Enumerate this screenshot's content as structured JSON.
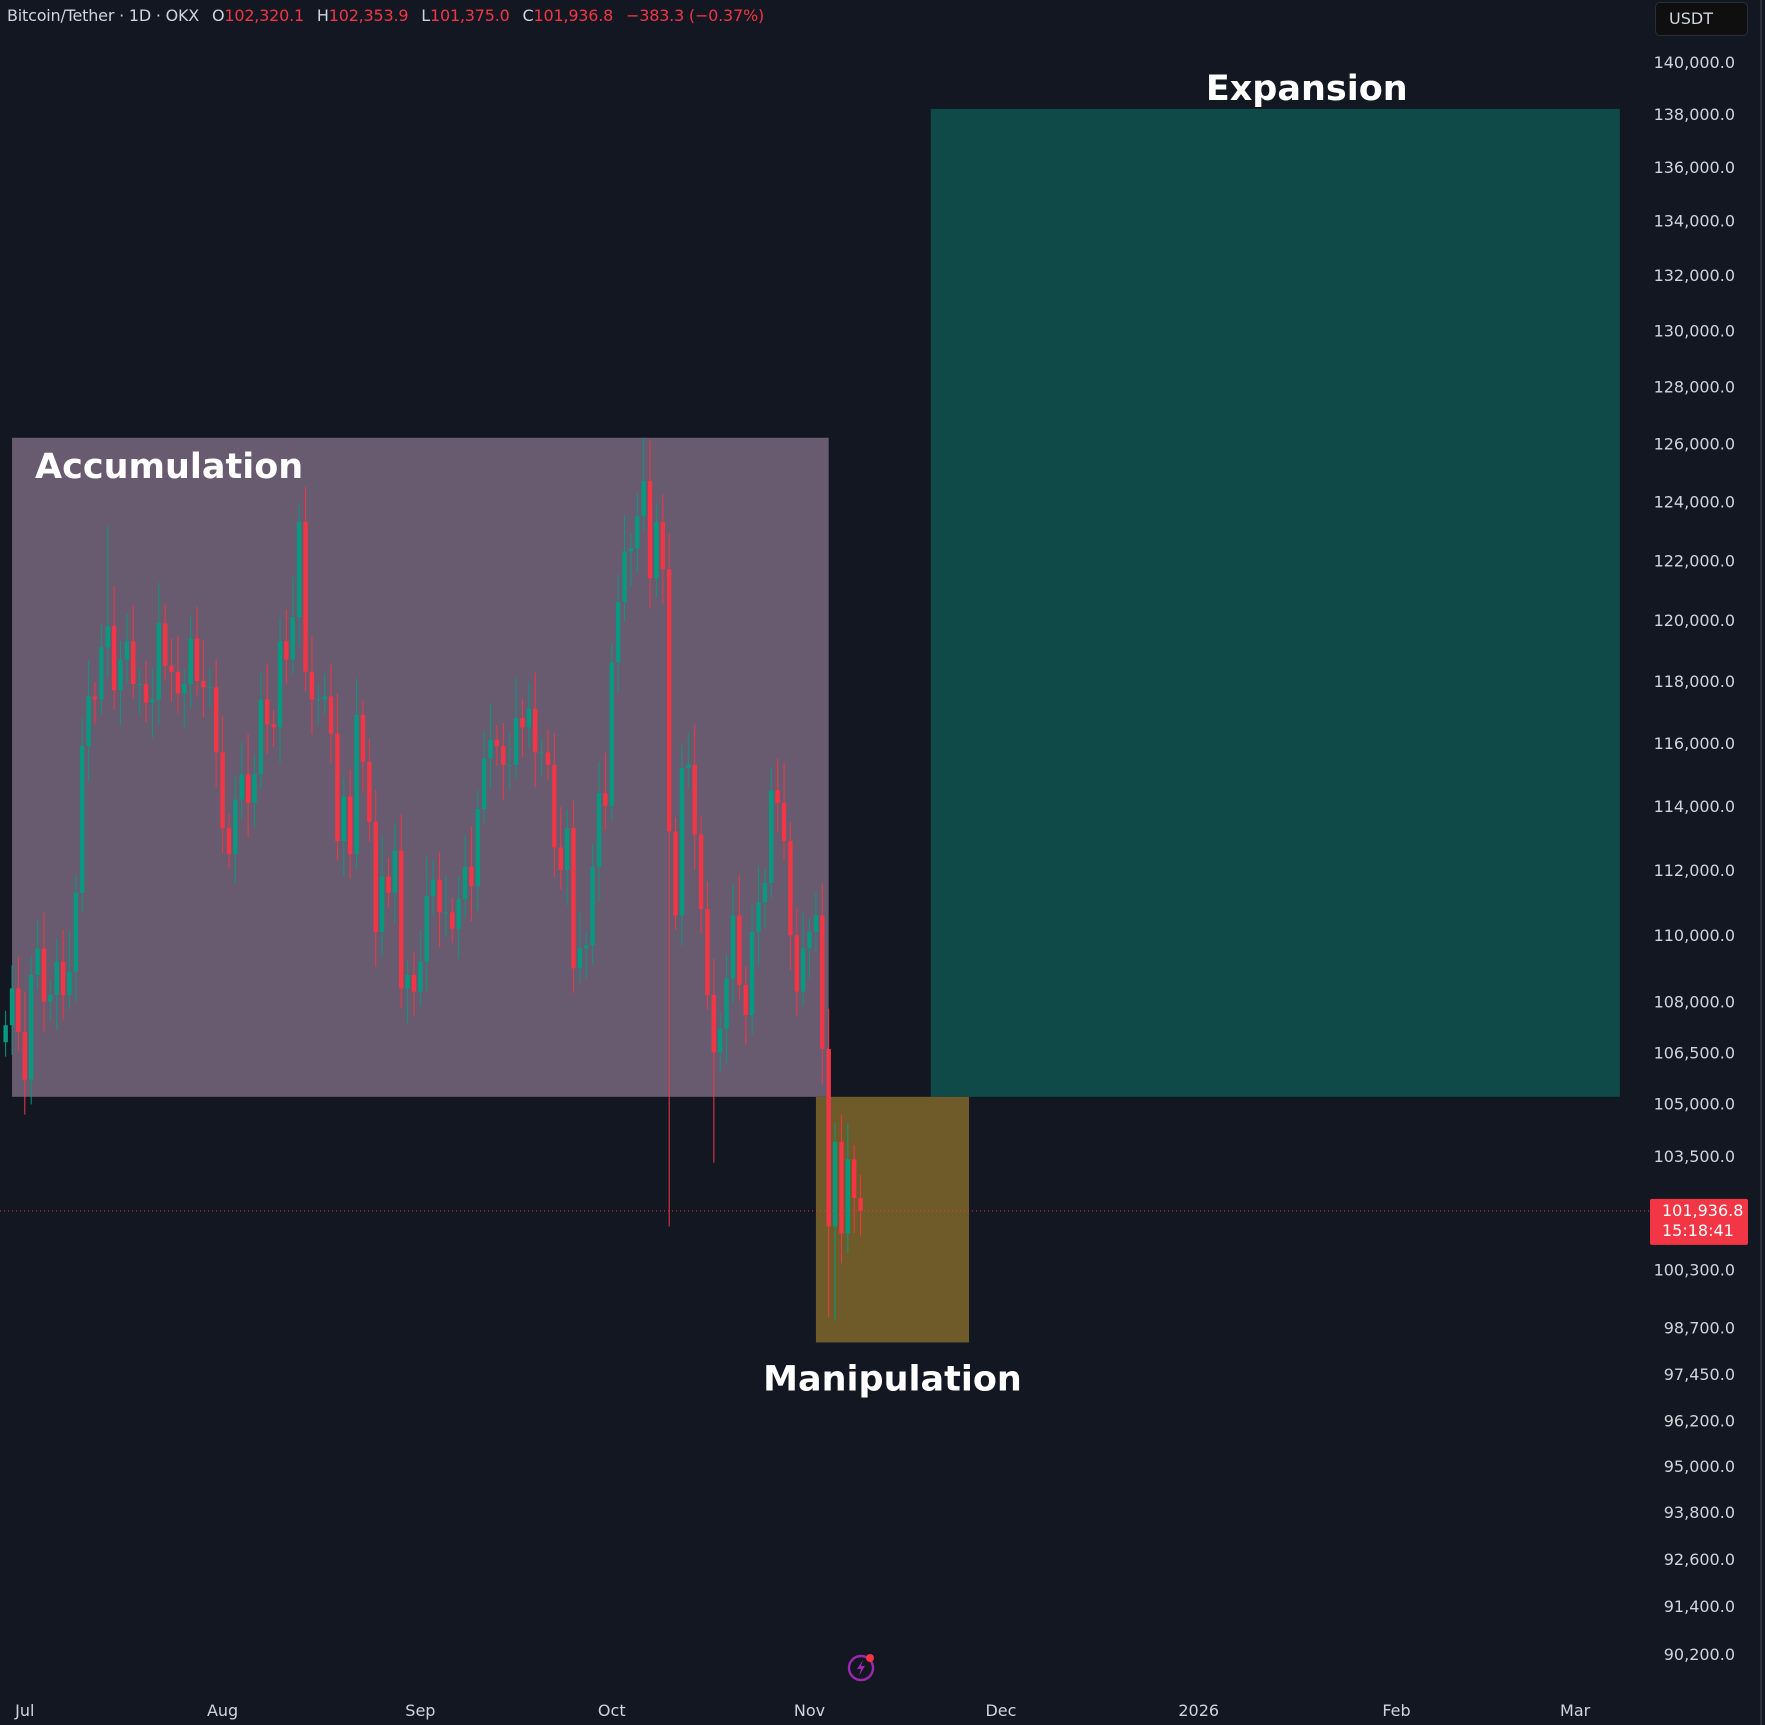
{
  "header": {
    "symbol": "Bitcoin/Tether · 1D · OKX",
    "open_label": "O",
    "open": "102,320.1",
    "high_label": "H",
    "high": "102,353.9",
    "low_label": "L",
    "low": "101,375.0",
    "close_label": "C",
    "close": "101,936.8",
    "change": "−383.3 (−0.37%)"
  },
  "currency": "USDT",
  "colors": {
    "background": "#131722",
    "up": "#089981",
    "down": "#f23645",
    "accumulation": "#685b70",
    "expansion": "#0f4a48",
    "manipulation": "#6f5a2a",
    "text": "#d1d4dc"
  },
  "icons": {
    "bottom": "lightning-alert-icon"
  },
  "chart_data": {
    "type": "candlestick",
    "scale": "log",
    "ylim": [
      90200,
      140000
    ],
    "xlim": [
      "2025-06-28",
      "2026-03-18"
    ],
    "grid": false,
    "y_ticks": [
      "140,000.0",
      "138,000.0",
      "136,000.0",
      "134,000.0",
      "132,000.0",
      "130,000.0",
      "128,000.0",
      "126,000.0",
      "124,000.0",
      "122,000.0",
      "120,000.0",
      "118,000.0",
      "116,000.0",
      "114,000.0",
      "112,000.0",
      "110,000.0",
      "108,000.0",
      "106,500.0",
      "105,000.0",
      "103,500.0",
      "100,300.0",
      "98,700.0",
      "97,450.0",
      "96,200.0",
      "95,000.0",
      "93,800.0",
      "92,600.0",
      "91,400.0",
      "90,200.0"
    ],
    "x_ticks": [
      {
        "label": "Jul",
        "date": "2025-07-01"
      },
      {
        "label": "Aug",
        "date": "2025-08-01"
      },
      {
        "label": "Sep",
        "date": "2025-09-01"
      },
      {
        "label": "Oct",
        "date": "2025-10-01"
      },
      {
        "label": "Nov",
        "date": "2025-11-01"
      },
      {
        "label": "Dec",
        "date": "2025-12-01"
      },
      {
        "label": "2026",
        "date": "2026-01-01"
      },
      {
        "label": "Feb",
        "date": "2026-02-01"
      },
      {
        "label": "Mar",
        "date": "2026-03-01"
      }
    ],
    "current_price": {
      "value": 101936.8,
      "label": "101,936.8",
      "countdown": "15:18:41"
    },
    "start_date": "2025-06-28",
    "open_first": 106800,
    "closes": [
      107300,
      108400,
      107100,
      105700,
      108800,
      109600,
      108000,
      108200,
      109200,
      108200,
      108900,
      111300,
      115900,
      117500,
      117400,
      119100,
      119800,
      117700,
      118700,
      119300,
      117900,
      117900,
      117300,
      117400,
      119900,
      118500,
      118300,
      117600,
      117900,
      119400,
      118000,
      117800,
      117800,
      115700,
      113300,
      112500,
      114200,
      115000,
      114100,
      115000,
      117400,
      116600,
      116500,
      119300,
      118700,
      120100,
      123300,
      118300,
      117400,
      117400,
      117500,
      116300,
      112900,
      114300,
      112500,
      116900,
      115400,
      113500,
      110100,
      111800,
      111300,
      112600,
      108400,
      108800,
      108300,
      109200,
      111200,
      111700,
      110700,
      110700,
      110200,
      111100,
      112100,
      111500,
      113900,
      115500,
      116100,
      115900,
      115300,
      115300,
      116800,
      116500,
      117100,
      115700,
      115700,
      115300,
      112700,
      112000,
      113300,
      109000,
      109600,
      109700,
      112100,
      114400,
      114000,
      118600,
      120600,
      122300,
      122400,
      123500,
      124700,
      121400,
      123300,
      121700,
      113200,
      110600,
      115200,
      115300,
      113100,
      110800,
      108200,
      106500,
      107200,
      108700,
      110600,
      108500,
      107600,
      110100,
      111000,
      111600,
      114500,
      114100,
      112900,
      110000,
      108300,
      109600,
      110100,
      110600,
      106600,
      101500,
      103900,
      101300,
      103400,
      102300,
      101936.8
    ],
    "notable_wicks": [
      {
        "date": "2025-07-14",
        "high": 123200
      },
      {
        "date": "2025-08-14",
        "high": 124500
      },
      {
        "date": "2025-10-06",
        "high": 126200
      },
      {
        "date": "2025-10-10",
        "low": 101500
      },
      {
        "date": "2025-10-17",
        "low": 103300
      },
      {
        "date": "2025-11-04",
        "low": 99000
      },
      {
        "date": "2025-11-05",
        "low": 98900
      }
    ],
    "zones": [
      {
        "name": "Accumulation",
        "start": "2025-06-29",
        "end": "2025-11-04",
        "low": 105200,
        "high": 126200,
        "color": "#685b70",
        "label_pos": "top-left"
      },
      {
        "name": "Expansion",
        "start": "2025-11-20",
        "end": "2026-03-08",
        "low": 105200,
        "high": 138200,
        "color": "#0f4a48",
        "label_pos": "above"
      },
      {
        "name": "Manipulation",
        "start": "2025-11-02",
        "end": "2025-11-26",
        "low": 98300,
        "high": 105200,
        "color": "#6f5a2a",
        "label_pos": "below"
      }
    ]
  }
}
